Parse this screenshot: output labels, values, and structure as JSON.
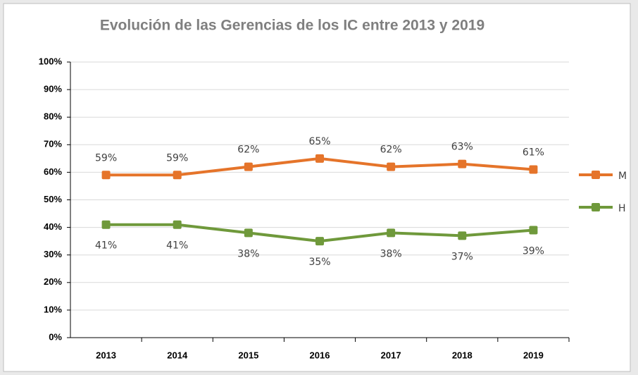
{
  "chart_data": {
    "type": "line",
    "title": "Evolución de las Gerencias de los IC entre 2013 y 2019",
    "categories": [
      "2013",
      "2014",
      "2015",
      "2016",
      "2017",
      "2018",
      "2019"
    ],
    "series": [
      {
        "name": "M",
        "color": "#e5742a",
        "values": [
          59,
          59,
          62,
          65,
          62,
          63,
          61
        ],
        "value_labels": [
          "59%",
          "59%",
          "62%",
          "65%",
          "62%",
          "63%",
          "61%"
        ]
      },
      {
        "name": "H",
        "color": "#6f993b",
        "values": [
          41,
          41,
          38,
          35,
          38,
          37,
          39
        ],
        "value_labels": [
          "41%",
          "41%",
          "38%",
          "35%",
          "38%",
          "37%",
          "39%"
        ]
      }
    ],
    "ylim": [
      0,
      100
    ],
    "yticks": [
      {
        "value": 0,
        "label": "0%"
      },
      {
        "value": 10,
        "label": "10%"
      },
      {
        "value": 20,
        "label": "20%"
      },
      {
        "value": 30,
        "label": "30%"
      },
      {
        "value": 40,
        "label": "40%"
      },
      {
        "value": 50,
        "label": "50%"
      },
      {
        "value": 60,
        "label": "60%"
      },
      {
        "value": 70,
        "label": "70%"
      },
      {
        "value": 80,
        "label": "80%"
      },
      {
        "value": 90,
        "label": "90%"
      },
      {
        "value": 100,
        "label": "100%"
      }
    ],
    "grid": true,
    "legend": "right"
  }
}
